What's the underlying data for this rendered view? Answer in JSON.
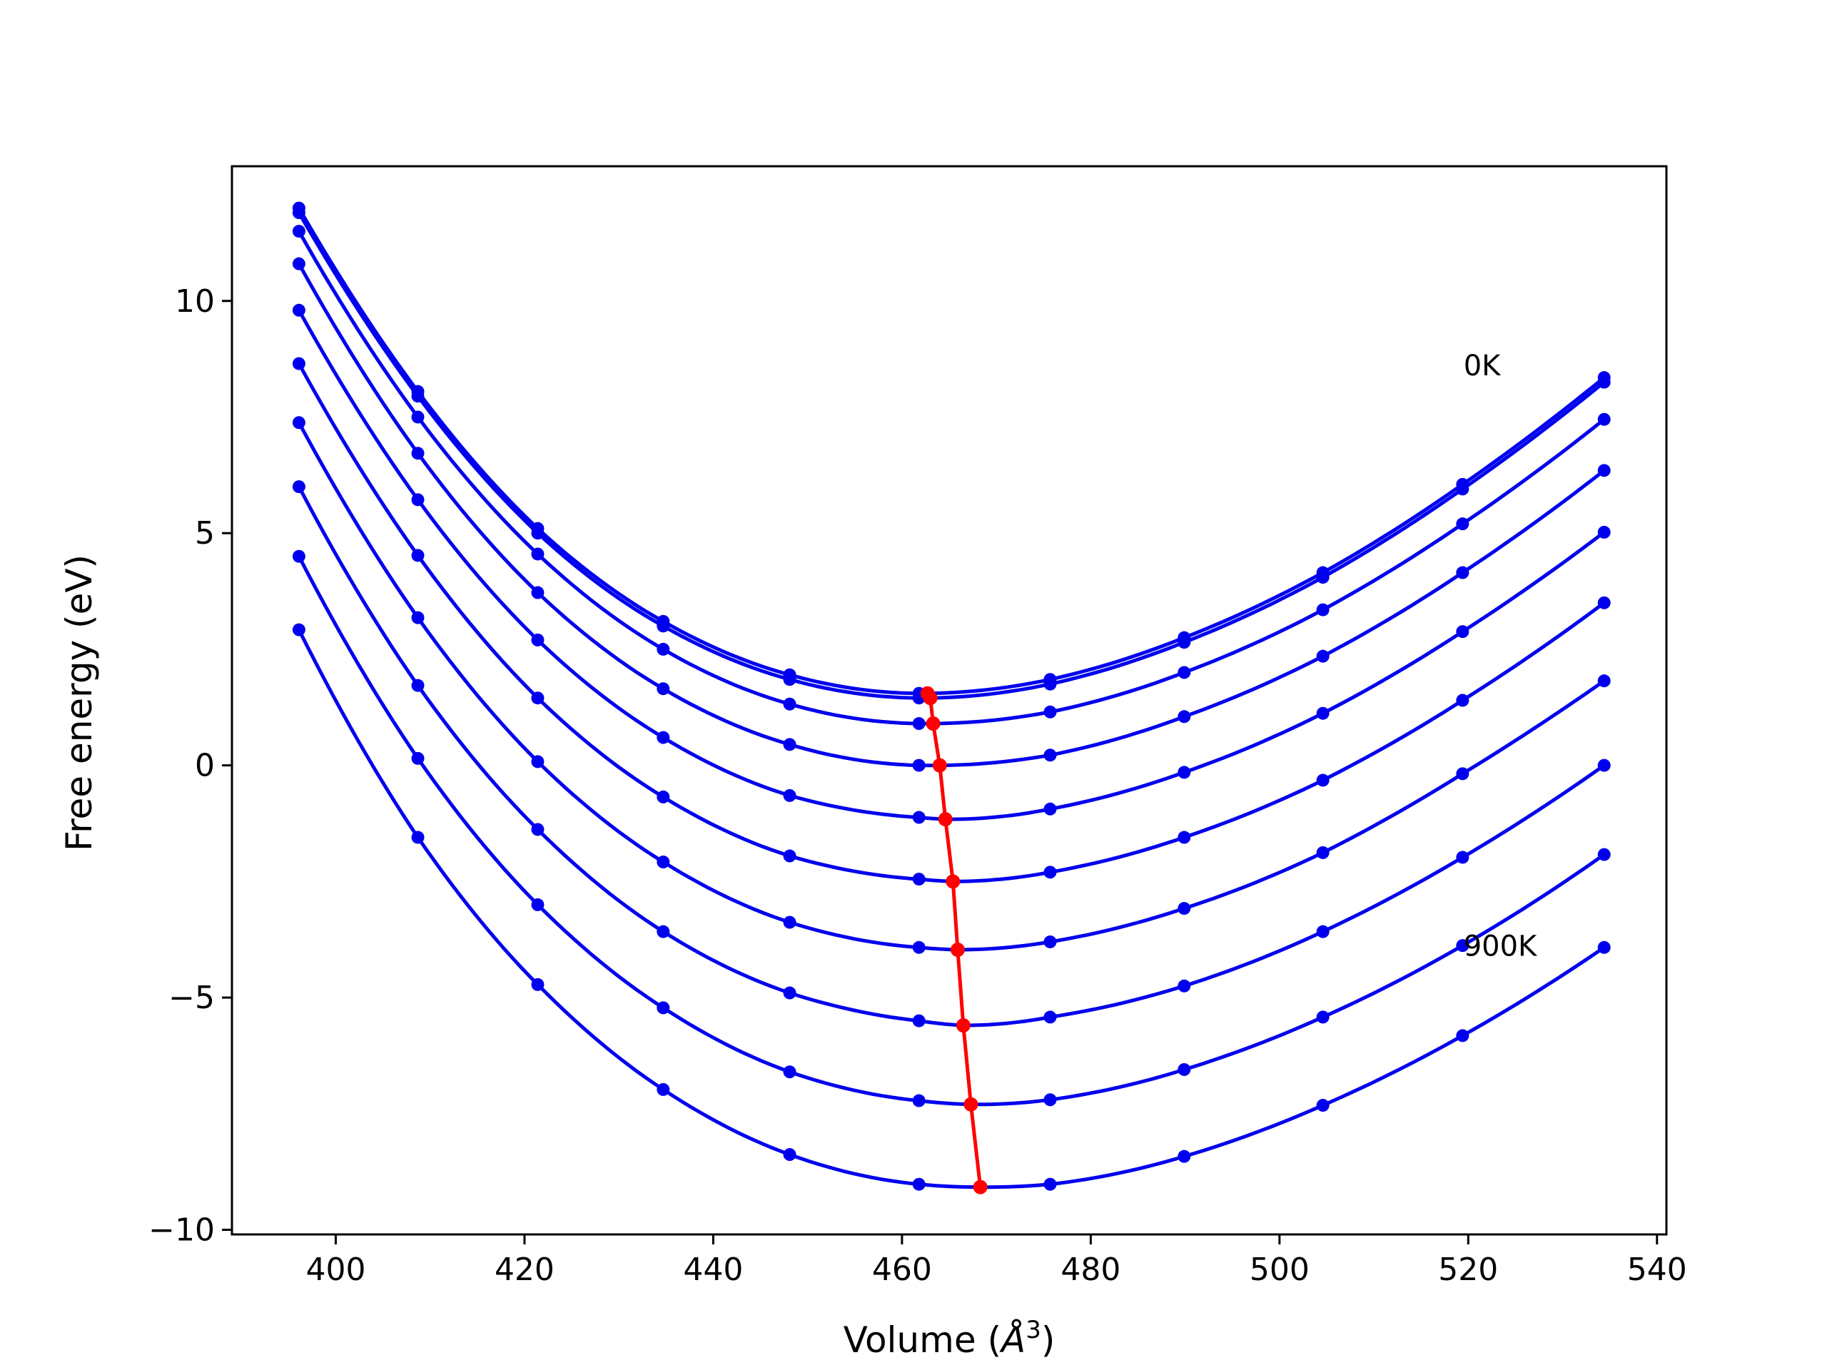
{
  "chart_data": {
    "type": "line",
    "title": "",
    "xlabel": "Volume (",
    "xlabel_symbol": "Å",
    "xlabel_exponent": "3",
    "xlabel_close": ")",
    "ylabel": "Free energy (eV)",
    "xlim": [
      389,
      541
    ],
    "ylim": [
      -10.1,
      12.9
    ],
    "xticks": [
      400,
      420,
      440,
      460,
      480,
      500,
      520,
      540
    ],
    "xtick_labels": [
      "400",
      "420",
      "440",
      "460",
      "480",
      "500",
      "520",
      "540"
    ],
    "yticks": [
      -10,
      -5,
      0,
      5,
      10
    ],
    "ytick_labels": [
      "−10",
      "−5",
      "0",
      "5",
      "10"
    ],
    "grid": false,
    "annotations": [
      {
        "text": "0K",
        "x": 519.5,
        "y": 8.4
      },
      {
        "text": "900K",
        "x": 519.5,
        "y": -4.1
      }
    ],
    "x": [
      396.1,
      408.7,
      421.4,
      434.7,
      448.1,
      461.8,
      475.7,
      489.9,
      504.6,
      519.4,
      534.4
    ],
    "series_color": "#0000ee",
    "series": [
      {
        "values": [
          12.0,
          8.05,
          5.1,
          3.1,
          1.95,
          1.55,
          1.85,
          2.75,
          4.15,
          6.05,
          8.35
        ],
        "min": [
          462.7,
          1.55
        ]
      },
      {
        "values": [
          11.9,
          7.95,
          5.0,
          3.0,
          1.85,
          1.45,
          1.75,
          2.65,
          4.05,
          5.95,
          8.25
        ],
        "min": [
          463.0,
          1.45
        ]
      },
      {
        "values": [
          11.5,
          7.5,
          4.55,
          2.5,
          1.32,
          0.9,
          1.15,
          2.0,
          3.35,
          5.2,
          7.45
        ],
        "min": [
          463.3,
          0.9
        ]
      },
      {
        "values": [
          10.8,
          6.72,
          3.72,
          1.65,
          0.45,
          0.0,
          0.22,
          1.05,
          2.35,
          4.15,
          6.35
        ],
        "min": [
          464.0,
          0.0
        ]
      },
      {
        "values": [
          9.8,
          5.72,
          2.7,
          0.6,
          -0.65,
          -1.12,
          -0.94,
          -0.15,
          1.12,
          2.88,
          5.02
        ],
        "min": [
          464.6,
          -1.16
        ]
      },
      {
        "values": [
          8.65,
          4.52,
          1.45,
          -0.68,
          -1.95,
          -2.45,
          -2.3,
          -1.55,
          -0.32,
          1.4,
          3.5
        ],
        "min": [
          465.4,
          -2.5
        ]
      },
      {
        "values": [
          7.38,
          3.18,
          0.08,
          -2.08,
          -3.38,
          -3.92,
          -3.8,
          -3.08,
          -1.88,
          -0.18,
          1.82
        ],
        "min": [
          465.9,
          -3.97
        ]
      },
      {
        "values": [
          6.0,
          1.72,
          -1.38,
          -3.58,
          -4.9,
          -5.5,
          -5.42,
          -4.75,
          -3.58,
          -1.98,
          0.0
        ],
        "min": [
          466.5,
          -5.6
        ]
      },
      {
        "values": [
          4.5,
          0.15,
          -3.0,
          -5.22,
          -6.6,
          -7.22,
          -7.2,
          -6.55,
          -5.42,
          -3.88,
          -1.92
        ],
        "min": [
          467.3,
          -7.3
        ]
      },
      {
        "values": [
          2.92,
          -1.55,
          -4.72,
          -6.98,
          -8.38,
          -9.02,
          -9.02,
          -8.42,
          -7.32,
          -5.82,
          -3.92
        ],
        "min": [
          468.3,
          -9.08
        ]
      }
    ],
    "min_curve_color": "#ff0000"
  }
}
